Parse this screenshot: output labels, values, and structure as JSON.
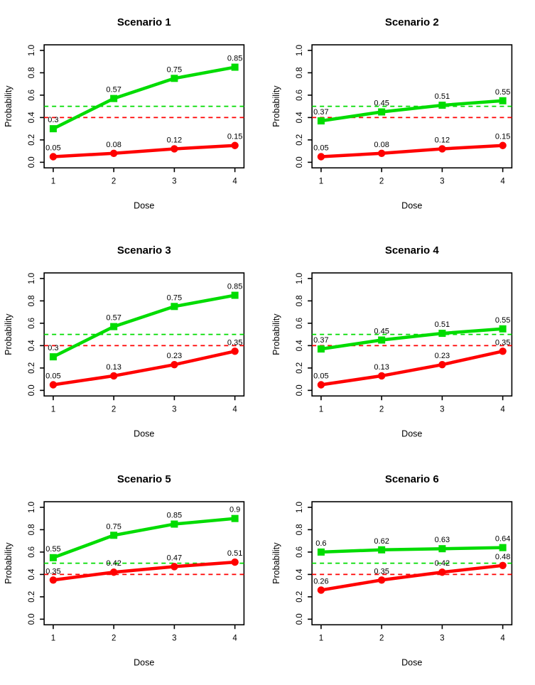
{
  "page": {
    "background": "#ffffff",
    "layout": "2x3-grid-of-plots"
  },
  "colors": {
    "green_series": "#00DC00",
    "red_series": "#FF0000",
    "axis": "#000000",
    "text": "#000000"
  },
  "chart_data": [
    {
      "type": "line",
      "title": "Scenario 1",
      "xlabel": "Dose",
      "ylabel": "Probability",
      "x": [
        1,
        2,
        3,
        4
      ],
      "xticks": [
        "1",
        "2",
        "3",
        "4"
      ],
      "yticks": [
        "0.0",
        "0.2",
        "0.4",
        "0.6",
        "0.8",
        "1.0"
      ],
      "xlim": [
        1,
        4
      ],
      "ylim": [
        0,
        1
      ],
      "grid": false,
      "legend": "none",
      "series": [
        {
          "name": "green-series",
          "color": "#00DC00",
          "marker": "square",
          "values": [
            0.3,
            0.57,
            0.75,
            0.85
          ]
        },
        {
          "name": "red-series",
          "color": "#FF0000",
          "marker": "circle",
          "values": [
            0.05,
            0.08,
            0.12,
            0.15
          ]
        }
      ],
      "reference_lines": [
        {
          "y": 0.5,
          "color": "#00DC00",
          "style": "dashed"
        },
        {
          "y": 0.4,
          "color": "#FF0000",
          "style": "dashed"
        }
      ]
    },
    {
      "type": "line",
      "title": "Scenario 2",
      "xlabel": "Dose",
      "ylabel": "Probability",
      "x": [
        1,
        2,
        3,
        4
      ],
      "xticks": [
        "1",
        "2",
        "3",
        "4"
      ],
      "yticks": [
        "0.0",
        "0.2",
        "0.4",
        "0.6",
        "0.8",
        "1.0"
      ],
      "xlim": [
        1,
        4
      ],
      "ylim": [
        0,
        1
      ],
      "grid": false,
      "legend": "none",
      "series": [
        {
          "name": "green-series",
          "color": "#00DC00",
          "marker": "square",
          "values": [
            0.37,
            0.45,
            0.51,
            0.55
          ]
        },
        {
          "name": "red-series",
          "color": "#FF0000",
          "marker": "circle",
          "values": [
            0.05,
            0.08,
            0.12,
            0.15
          ]
        }
      ],
      "reference_lines": [
        {
          "y": 0.5,
          "color": "#00DC00",
          "style": "dashed"
        },
        {
          "y": 0.4,
          "color": "#FF0000",
          "style": "dashed"
        }
      ]
    },
    {
      "type": "line",
      "title": "Scenario 3",
      "xlabel": "Dose",
      "ylabel": "Probability",
      "x": [
        1,
        2,
        3,
        4
      ],
      "xticks": [
        "1",
        "2",
        "3",
        "4"
      ],
      "yticks": [
        "0.0",
        "0.2",
        "0.4",
        "0.6",
        "0.8",
        "1.0"
      ],
      "xlim": [
        1,
        4
      ],
      "ylim": [
        0,
        1
      ],
      "grid": false,
      "legend": "none",
      "series": [
        {
          "name": "green-series",
          "color": "#00DC00",
          "marker": "square",
          "values": [
            0.3,
            0.57,
            0.75,
            0.85
          ]
        },
        {
          "name": "red-series",
          "color": "#FF0000",
          "marker": "circle",
          "values": [
            0.05,
            0.13,
            0.23,
            0.35
          ]
        }
      ],
      "reference_lines": [
        {
          "y": 0.5,
          "color": "#00DC00",
          "style": "dashed"
        },
        {
          "y": 0.4,
          "color": "#FF0000",
          "style": "dashed"
        }
      ]
    },
    {
      "type": "line",
      "title": "Scenario 4",
      "xlabel": "Dose",
      "ylabel": "Probability",
      "x": [
        1,
        2,
        3,
        4
      ],
      "xticks": [
        "1",
        "2",
        "3",
        "4"
      ],
      "yticks": [
        "0.0",
        "0.2",
        "0.4",
        "0.6",
        "0.8",
        "1.0"
      ],
      "xlim": [
        1,
        4
      ],
      "ylim": [
        0,
        1
      ],
      "grid": false,
      "legend": "none",
      "series": [
        {
          "name": "green-series",
          "color": "#00DC00",
          "marker": "square",
          "values": [
            0.37,
            0.45,
            0.51,
            0.55
          ]
        },
        {
          "name": "red-series",
          "color": "#FF0000",
          "marker": "circle",
          "values": [
            0.05,
            0.13,
            0.23,
            0.35
          ]
        }
      ],
      "reference_lines": [
        {
          "y": 0.5,
          "color": "#00DC00",
          "style": "dashed"
        },
        {
          "y": 0.4,
          "color": "#FF0000",
          "style": "dashed"
        }
      ]
    },
    {
      "type": "line",
      "title": "Scenario 5",
      "xlabel": "Dose",
      "ylabel": "Probability",
      "x": [
        1,
        2,
        3,
        4
      ],
      "xticks": [
        "1",
        "2",
        "3",
        "4"
      ],
      "yticks": [
        "0.0",
        "0.2",
        "0.4",
        "0.6",
        "0.8",
        "1.0"
      ],
      "xlim": [
        1,
        4
      ],
      "ylim": [
        0,
        1
      ],
      "grid": false,
      "legend": "none",
      "series": [
        {
          "name": "green-series",
          "color": "#00DC00",
          "marker": "square",
          "values": [
            0.55,
            0.75,
            0.85,
            0.9
          ]
        },
        {
          "name": "red-series",
          "color": "#FF0000",
          "marker": "circle",
          "values": [
            0.35,
            0.42,
            0.47,
            0.51
          ]
        }
      ],
      "reference_lines": [
        {
          "y": 0.5,
          "color": "#00DC00",
          "style": "dashed"
        },
        {
          "y": 0.4,
          "color": "#FF0000",
          "style": "dashed"
        }
      ]
    },
    {
      "type": "line",
      "title": "Scenario 6",
      "xlabel": "Dose",
      "ylabel": "Probability",
      "x": [
        1,
        2,
        3,
        4
      ],
      "xticks": [
        "1",
        "2",
        "3",
        "4"
      ],
      "yticks": [
        "0.0",
        "0.2",
        "0.4",
        "0.6",
        "0.8",
        "1.0"
      ],
      "xlim": [
        1,
        4
      ],
      "ylim": [
        0,
        1
      ],
      "grid": false,
      "legend": "none",
      "series": [
        {
          "name": "green-series",
          "color": "#00DC00",
          "marker": "square",
          "values": [
            0.6,
            0.62,
            0.63,
            0.64
          ]
        },
        {
          "name": "red-series",
          "color": "#FF0000",
          "marker": "circle",
          "values": [
            0.26,
            0.35,
            0.42,
            0.48
          ]
        }
      ],
      "reference_lines": [
        {
          "y": 0.5,
          "color": "#00DC00",
          "style": "dashed"
        },
        {
          "y": 0.4,
          "color": "#FF0000",
          "style": "dashed"
        }
      ]
    }
  ]
}
